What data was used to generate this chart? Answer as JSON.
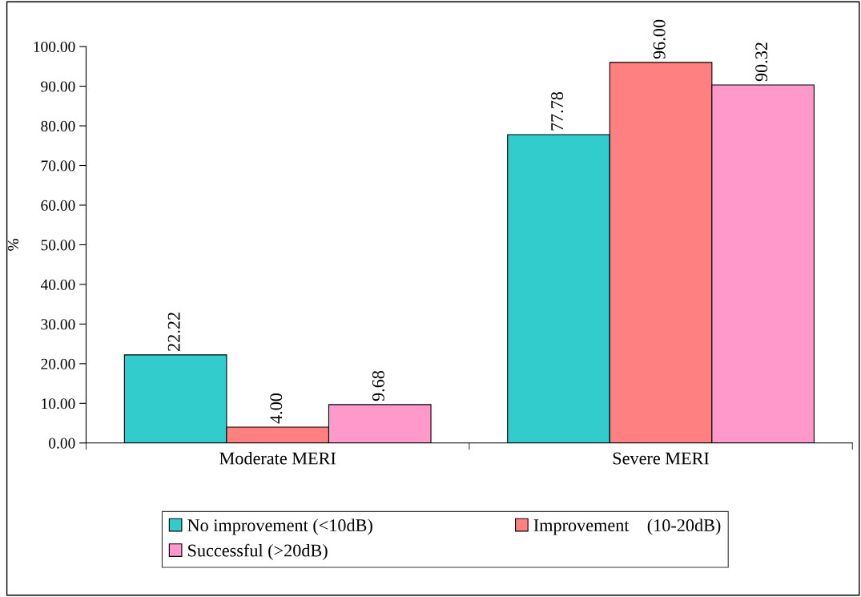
{
  "chart_data": {
    "type": "bar",
    "ylabel": "%",
    "categories": [
      "Moderate MERI",
      "Severe MERI"
    ],
    "series": [
      {
        "name": "No improvement (<10dB)",
        "color": "#33cccc",
        "values": [
          22.22,
          77.78
        ],
        "value_labels": [
          "22.22",
          "77.78"
        ]
      },
      {
        "name": "Improvement    (10-20dB)",
        "color": "#ff8080",
        "values": [
          4.0,
          96.0
        ],
        "value_labels": [
          "4.00",
          "96.00"
        ]
      },
      {
        "name": "Successful (>20dB)",
        "color": "#ff99cc",
        "values": [
          9.68,
          90.32
        ],
        "value_labels": [
          "9.68",
          "90.32"
        ]
      }
    ],
    "ylim": [
      0,
      100
    ],
    "yticks": [
      {
        "value": 0,
        "label": "0.00"
      },
      {
        "value": 10,
        "label": "10.00"
      },
      {
        "value": 20,
        "label": "20.00"
      },
      {
        "value": 30,
        "label": "30.00"
      },
      {
        "value": 40,
        "label": "40.00"
      },
      {
        "value": 50,
        "label": "50.00"
      },
      {
        "value": 60,
        "label": "60.00"
      },
      {
        "value": 70,
        "label": "70.00"
      },
      {
        "value": 80,
        "label": "80.00"
      },
      {
        "value": 90,
        "label": "90.00"
      },
      {
        "value": 100,
        "label": "100.00"
      }
    ],
    "grid": false,
    "legend": "bottom"
  }
}
